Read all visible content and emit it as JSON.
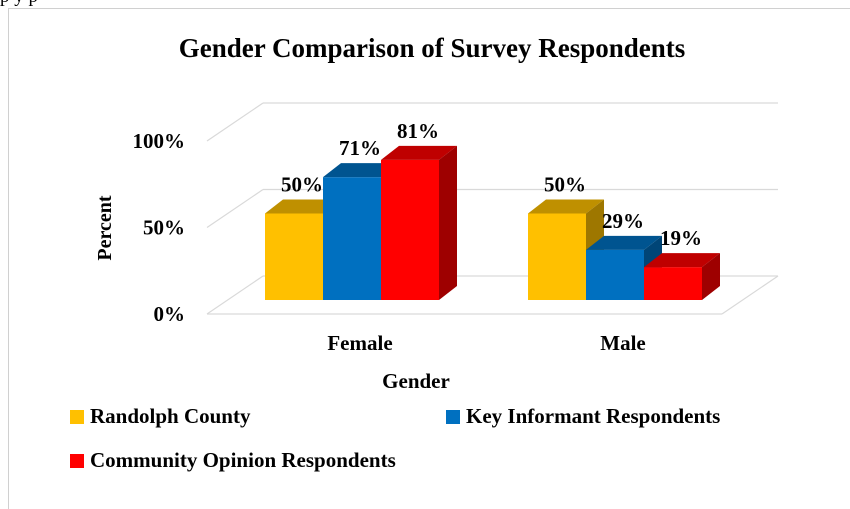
{
  "page": {
    "top_clipped_text": "p                    y        p"
  },
  "colors": {
    "yellow": "#FFC000",
    "blue": "#0070C0",
    "red": "#FF0000"
  },
  "chart_data": {
    "type": "bar",
    "three_d": true,
    "title": "Gender Comparison of Survey Respondents",
    "xlabel": "Gender",
    "ylabel": "Percent",
    "categories": [
      "Female",
      "Male"
    ],
    "yticks": [
      "0%",
      "50%",
      "100%"
    ],
    "ylim": [
      0,
      100
    ],
    "grid": true,
    "legend_position": "bottom",
    "series": [
      {
        "name": "Randolph County",
        "color": "#FFC000",
        "values": [
          50,
          50
        ],
        "labels": [
          "50%",
          "50%"
        ]
      },
      {
        "name": "Key Informant Respondents",
        "color": "#0070C0",
        "values": [
          71,
          29
        ],
        "labels": [
          "71%",
          "29%"
        ]
      },
      {
        "name": "Community Opinion Respondents",
        "color": "#FF0000",
        "values": [
          81,
          19
        ],
        "labels": [
          "81%",
          "19%"
        ]
      }
    ]
  }
}
